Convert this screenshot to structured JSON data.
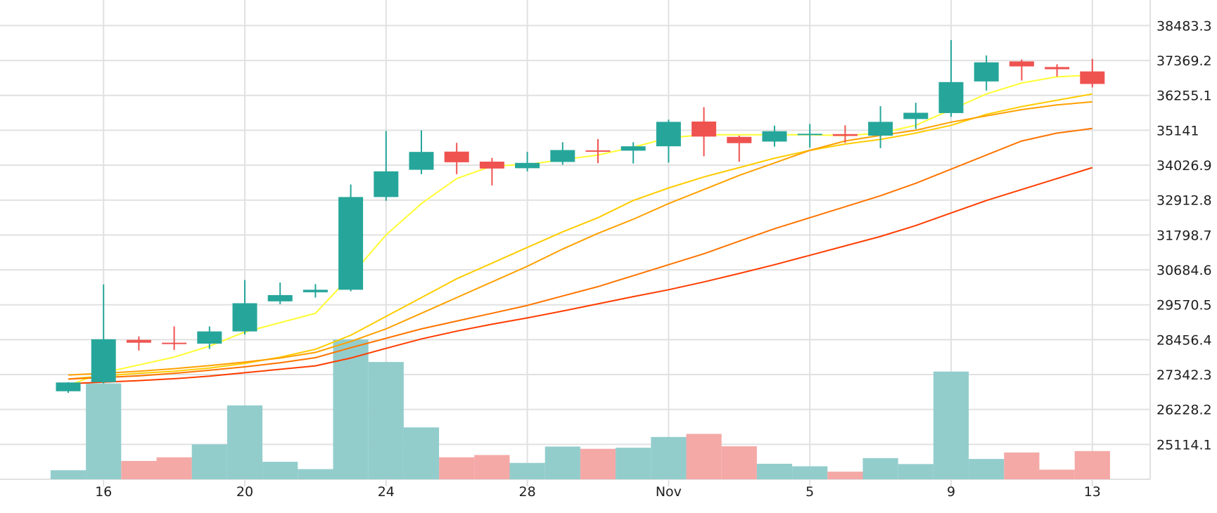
{
  "chart_data": {
    "type": "candlestick",
    "title": "",
    "xlabel": "",
    "ylabel": "",
    "x_tick_labels": [
      "16",
      "20",
      "24",
      "28",
      "Nov",
      "5",
      "9",
      "13"
    ],
    "y_tick_labels": [
      "38483.3",
      "37369.2",
      "36255.1",
      "35141",
      "34026.9",
      "32912.8",
      "31798.7",
      "30684.6",
      "29570.5",
      "28456.4",
      "27342.3",
      "26228.2",
      "25114.1"
    ],
    "ylim": [
      24000,
      39300
    ],
    "grid": true,
    "candles": [
      {
        "open": 26810,
        "high": 27100,
        "low": 26760,
        "close": 27090
      },
      {
        "open": 27100,
        "high": 30220,
        "low": 27060,
        "close": 28470
      },
      {
        "open": 28450,
        "high": 28560,
        "low": 28110,
        "close": 28360
      },
      {
        "open": 28360,
        "high": 28880,
        "low": 28130,
        "close": 28330
      },
      {
        "open": 28330,
        "high": 28880,
        "low": 28160,
        "close": 28720
      },
      {
        "open": 28720,
        "high": 30360,
        "low": 28620,
        "close": 29620
      },
      {
        "open": 29680,
        "high": 30280,
        "low": 29590,
        "close": 29880
      },
      {
        "open": 29970,
        "high": 30230,
        "low": 29800,
        "close": 30050
      },
      {
        "open": 30050,
        "high": 33410,
        "low": 30000,
        "close": 33010
      },
      {
        "open": 33010,
        "high": 35120,
        "low": 32890,
        "close": 33830
      },
      {
        "open": 33880,
        "high": 35140,
        "low": 33740,
        "close": 34450
      },
      {
        "open": 34460,
        "high": 34740,
        "low": 33740,
        "close": 34120
      },
      {
        "open": 34140,
        "high": 34260,
        "low": 33380,
        "close": 33920
      },
      {
        "open": 33930,
        "high": 34450,
        "low": 33830,
        "close": 34100
      },
      {
        "open": 34130,
        "high": 34760,
        "low": 34040,
        "close": 34510
      },
      {
        "open": 34500,
        "high": 34860,
        "low": 34090,
        "close": 34490
      },
      {
        "open": 34490,
        "high": 34760,
        "low": 34080,
        "close": 34630
      },
      {
        "open": 34630,
        "high": 35480,
        "low": 34110,
        "close": 35410
      },
      {
        "open": 35420,
        "high": 35880,
        "low": 34310,
        "close": 34940
      },
      {
        "open": 34930,
        "high": 34970,
        "low": 34140,
        "close": 34730
      },
      {
        "open": 34780,
        "high": 35290,
        "low": 34620,
        "close": 35110
      },
      {
        "open": 35030,
        "high": 35340,
        "low": 34590,
        "close": 35030
      },
      {
        "open": 35020,
        "high": 35300,
        "low": 34740,
        "close": 34960
      },
      {
        "open": 34970,
        "high": 35910,
        "low": 34570,
        "close": 35410
      },
      {
        "open": 35500,
        "high": 36020,
        "low": 35180,
        "close": 35700
      },
      {
        "open": 35690,
        "high": 38020,
        "low": 35570,
        "close": 36680
      },
      {
        "open": 36700,
        "high": 37530,
        "low": 36410,
        "close": 37310
      },
      {
        "open": 37340,
        "high": 37400,
        "low": 36730,
        "close": 37180
      },
      {
        "open": 37160,
        "high": 37250,
        "low": 36860,
        "close": 37090
      },
      {
        "open": 37020,
        "high": 37420,
        "low": 36510,
        "close": 36620
      }
    ],
    "volume": {
      "values": [
        3.2,
        34.0,
        6.5,
        7.8,
        12.4,
        26.2,
        6.2,
        3.6,
        49.6,
        41.6,
        18.4,
        7.8,
        8.6,
        5.8,
        11.6,
        10.8,
        11.2,
        15.0,
        16.1,
        11.7,
        5.5,
        4.6,
        2.7,
        7.5,
        5.4,
        38.2,
        7.2,
        9.5,
        3.4,
        10.0
      ],
      "ylim": [
        0,
        49.6
      ]
    },
    "series": [
      {
        "color": "#ffff33",
        "values": [
          27000,
          27400,
          27650,
          27900,
          28250,
          28700,
          29000,
          29300,
          30500,
          31800,
          32800,
          33600,
          34000,
          34050,
          34200,
          34350,
          34600,
          34900,
          35000,
          35000,
          35000,
          35000,
          34970,
          35050,
          35300,
          35800,
          36300,
          36650,
          36850,
          36900
        ]
      },
      {
        "color": "#ffcc00",
        "values": [
          27200,
          27300,
          27380,
          27450,
          27550,
          27700,
          27900,
          28150,
          28600,
          29200,
          29800,
          30400,
          30900,
          31400,
          31900,
          32350,
          32900,
          33300,
          33650,
          33950,
          34250,
          34500,
          34700,
          34850,
          35050,
          35300,
          35650,
          35900,
          36100,
          36300
        ]
      },
      {
        "color": "#ffa000",
        "values": [
          27330,
          27380,
          27450,
          27530,
          27630,
          27740,
          27870,
          28050,
          28400,
          28800,
          29300,
          29800,
          30300,
          30800,
          31350,
          31850,
          32300,
          32800,
          33250,
          33700,
          34100,
          34500,
          34800,
          34980,
          35140,
          35400,
          35600,
          35800,
          35950,
          36050
        ]
      },
      {
        "color": "#ff7400",
        "values": [
          27200,
          27250,
          27300,
          27380,
          27480,
          27590,
          27720,
          27880,
          28200,
          28500,
          28800,
          29050,
          29300,
          29550,
          29850,
          30150,
          30500,
          30850,
          31200,
          31600,
          32000,
          32350,
          32700,
          33050,
          33450,
          33900,
          34350,
          34800,
          35050,
          35200
        ]
      },
      {
        "color": "#ff3d00",
        "values": [
          27050,
          27100,
          27150,
          27210,
          27290,
          27400,
          27510,
          27620,
          27870,
          28180,
          28480,
          28730,
          28950,
          29150,
          29370,
          29600,
          29830,
          30050,
          30300,
          30570,
          30850,
          31150,
          31450,
          31750,
          32100,
          32500,
          32900,
          33250,
          33600,
          33950
        ]
      }
    ],
    "colors": {
      "up": "#26a69a",
      "down": "#ef5350",
      "up_volume": "#92cdcc",
      "down_volume": "#f4a9a7",
      "grid": "#e1e1e1",
      "text": "#1e1e1e"
    }
  }
}
